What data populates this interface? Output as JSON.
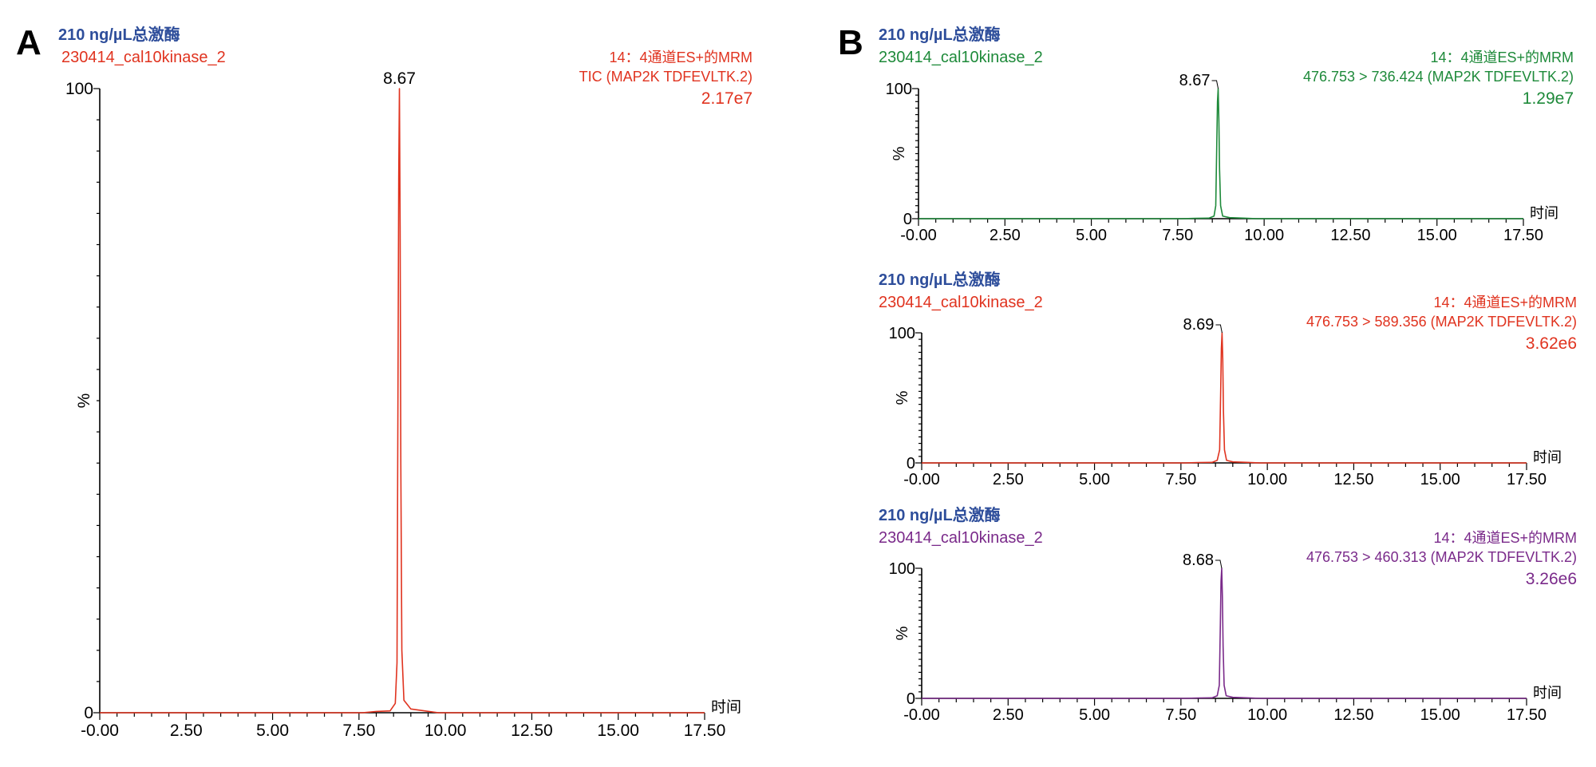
{
  "panel_letters": [
    "A",
    "B"
  ],
  "colors": {
    "title": "#2e4e9b",
    "axis": "#000000"
  },
  "chart_data": [
    {
      "type": "line",
      "panel": "A",
      "title": "210 ng/µL总激酶",
      "sample": "230414_cal10kinase_2",
      "channel": "14：4通道ES+的MRM",
      "trace": "TIC (MAP2K TDFEVLTK.2)",
      "intensity": "2.17e7",
      "peak_label": "8.67",
      "xlabel": "时间",
      "ylabel": "%",
      "xlim": [
        0,
        17.5
      ],
      "ylim": [
        0,
        100
      ],
      "x_ticks": [
        "-0.00",
        "2.50",
        "5.00",
        "7.50",
        "10.00",
        "12.50",
        "15.00",
        "17.50"
      ],
      "y_ticks": [
        "0",
        "100"
      ],
      "color": "#e0331f",
      "series": [
        {
          "x": [
            0,
            7.6,
            8.0,
            8.4,
            8.55,
            8.6,
            8.63,
            8.65,
            8.67,
            8.69,
            8.71,
            8.74,
            8.8,
            9.0,
            9.4,
            9.8,
            17.5
          ],
          "y": [
            0,
            0,
            0.2,
            0.3,
            1.5,
            8,
            55,
            86,
            100,
            78,
            40,
            10,
            2,
            0.6,
            0.3,
            0,
            0
          ]
        }
      ]
    },
    {
      "type": "line",
      "panel": "B",
      "title": "210 ng/µL总激酶",
      "sample": "230414_cal10kinase_2",
      "channel": "14：4通道ES+的MRM",
      "trace": "476.753 > 736.424 (MAP2K TDFEVLTK.2)",
      "intensity": "1.29e7",
      "peak_label": "8.67",
      "xlabel": "时间",
      "ylabel": "%",
      "xlim": [
        0,
        17.5
      ],
      "ylim": [
        0,
        100
      ],
      "x_ticks": [
        "-0.00",
        "2.50",
        "5.00",
        "7.50",
        "10.00",
        "12.50",
        "15.00",
        "17.50"
      ],
      "y_ticks": [
        "0",
        "100"
      ],
      "color": "#1e8a3a",
      "series": [
        {
          "x": [
            0,
            7.6,
            8.0,
            8.4,
            8.55,
            8.6,
            8.63,
            8.65,
            8.67,
            8.69,
            8.71,
            8.74,
            8.8,
            9.0,
            9.4,
            9.8,
            17.5
          ],
          "y": [
            0,
            0,
            0.3,
            0.4,
            2,
            10,
            58,
            90,
            100,
            76,
            38,
            10,
            2,
            0.8,
            0.4,
            0,
            0
          ]
        }
      ]
    },
    {
      "type": "line",
      "panel": "B",
      "title": "210 ng/µL总激酶",
      "sample": "230414_cal10kinase_2",
      "channel": "14：4通道ES+的MRM",
      "trace": "476.753 > 589.356 (MAP2K TDFEVLTK.2)",
      "intensity": "3.62e6",
      "peak_label": "8.69",
      "xlabel": "时间",
      "ylabel": "%",
      "xlim": [
        0,
        17.5
      ],
      "ylim": [
        0,
        100
      ],
      "x_ticks": [
        "-0.00",
        "2.50",
        "5.00",
        "7.50",
        "10.00",
        "12.50",
        "15.00",
        "17.50"
      ],
      "y_ticks": [
        "0",
        "100"
      ],
      "color": "#e0331f",
      "series": [
        {
          "x": [
            0,
            7.6,
            8.0,
            8.4,
            8.55,
            8.62,
            8.65,
            8.67,
            8.69,
            8.71,
            8.73,
            8.76,
            8.82,
            9.0,
            9.4,
            9.8,
            17.5
          ],
          "y": [
            0,
            0,
            0.3,
            0.4,
            2,
            10,
            55,
            88,
            100,
            80,
            40,
            10,
            2,
            0.8,
            0.4,
            0,
            0
          ]
        }
      ]
    },
    {
      "type": "line",
      "panel": "B",
      "title": "210 ng/µL总激酶",
      "sample": "230414_cal10kinase_2",
      "channel": "14：4通道ES+的MRM",
      "trace": "476.753 > 460.313 (MAP2K TDFEVLTK.2)",
      "intensity": "3.26e6",
      "peak_label": "8.68",
      "xlabel": "时间",
      "ylabel": "%",
      "xlim": [
        0,
        17.5
      ],
      "ylim": [
        0,
        100
      ],
      "x_ticks": [
        "-0.00",
        "2.50",
        "5.00",
        "7.50",
        "10.00",
        "12.50",
        "15.00",
        "17.50"
      ],
      "y_ticks": [
        "0",
        "100"
      ],
      "color": "#7a2a8a",
      "series": [
        {
          "x": [
            0,
            7.6,
            8.0,
            8.4,
            8.55,
            8.61,
            8.64,
            8.66,
            8.68,
            8.7,
            8.72,
            8.75,
            8.81,
            9.0,
            9.4,
            9.8,
            17.5
          ],
          "y": [
            0,
            0,
            0.3,
            0.4,
            2,
            10,
            56,
            90,
            100,
            78,
            40,
            10,
            2,
            0.8,
            0.4,
            0,
            0
          ]
        }
      ]
    }
  ]
}
